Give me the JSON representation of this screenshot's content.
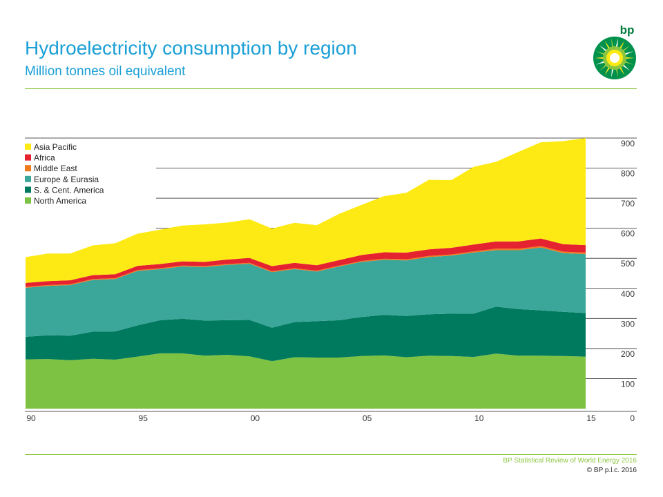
{
  "header": {
    "title": "Hydroelectricity consumption by region",
    "subtitle": "Million tonnes oil equivalent"
  },
  "logo": {
    "text": "bp",
    "icon": "bp-helios-icon"
  },
  "footer": {
    "source": "BP Statistical Review of World Energy 2016",
    "copyright": "© BP p.l.c. 2016"
  },
  "colors": {
    "title": "#1a9fd6",
    "rule": "#8cc63f"
  },
  "chart_data": {
    "type": "area",
    "stacked": true,
    "title": "Hydroelectricity consumption by region",
    "subtitle": "Million tonnes oil equivalent",
    "x": [
      1990,
      1991,
      1992,
      1993,
      1994,
      1995,
      1996,
      1997,
      1998,
      1999,
      2000,
      2001,
      2002,
      2003,
      2004,
      2005,
      2006,
      2007,
      2008,
      2009,
      2010,
      2011,
      2012,
      2013,
      2014,
      2015
    ],
    "x_tick_values": [
      1990,
      1995,
      2000,
      2005,
      2010,
      2015
    ],
    "x_tick_labels": [
      "90",
      "95",
      "00",
      "05",
      "10",
      "15"
    ],
    "y_ticks": [
      0,
      100,
      200,
      300,
      400,
      500,
      600,
      700,
      800,
      900
    ],
    "ylim": [
      0,
      900
    ],
    "y_axis_side": "right",
    "legend_position": "top-left",
    "series": [
      {
        "name": "North America",
        "color": "#7dc242",
        "values": [
          164,
          165,
          161,
          166,
          163,
          173,
          184,
          184,
          176,
          179,
          174,
          158,
          171,
          170,
          170,
          175,
          177,
          171,
          176,
          175,
          172,
          183,
          176,
          176,
          175,
          173
        ]
      },
      {
        "name": "S. & Cent. America",
        "color": "#007a5e",
        "values": [
          75,
          79,
          82,
          90,
          94,
          104,
          110,
          115,
          117,
          115,
          121,
          111,
          117,
          121,
          124,
          130,
          135,
          137,
          138,
          141,
          144,
          156,
          155,
          151,
          147,
          145
        ]
      },
      {
        "name": "Europe & Eurasia",
        "color": "#3ba69a",
        "values": [
          163,
          164,
          168,
          172,
          174,
          181,
          170,
          174,
          178,
          184,
          187,
          185,
          176,
          165,
          179,
          183,
          183,
          185,
          190,
          193,
          203,
          188,
          196,
          209,
          195,
          196
        ]
      },
      {
        "name": "Middle East",
        "color": "#f07b1f",
        "values": [
          3,
          3,
          3,
          3,
          3,
          3,
          3,
          3,
          3,
          3,
          3,
          3,
          3,
          3,
          3,
          3,
          4,
          4,
          4,
          4,
          4,
          5,
          5,
          5,
          5,
          5
        ]
      },
      {
        "name": "Africa",
        "color": "#e52330",
        "values": [
          13,
          13,
          13,
          13,
          13,
          14,
          14,
          14,
          14,
          15,
          16,
          17,
          18,
          18,
          18,
          20,
          21,
          22,
          22,
          22,
          23,
          24,
          24,
          25,
          25,
          25
        ]
      },
      {
        "name": "Asia Pacific",
        "color": "#fdea14",
        "values": [
          86,
          92,
          89,
          99,
          103,
          107,
          114,
          119,
          125,
          123,
          129,
          125,
          133,
          133,
          154,
          167,
          187,
          199,
          231,
          225,
          258,
          265,
          298,
          320,
          343,
          356
        ]
      }
    ]
  }
}
